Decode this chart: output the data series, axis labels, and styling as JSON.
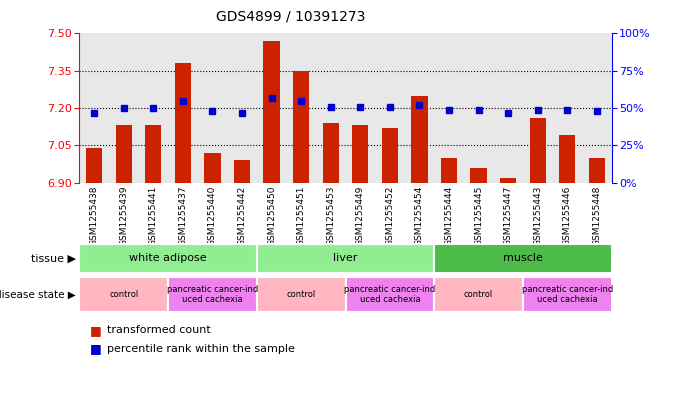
{
  "title": "GDS4899 / 10391273",
  "samples": [
    "GSM1255438",
    "GSM1255439",
    "GSM1255441",
    "GSM1255437",
    "GSM1255440",
    "GSM1255442",
    "GSM1255450",
    "GSM1255451",
    "GSM1255453",
    "GSM1255449",
    "GSM1255452",
    "GSM1255454",
    "GSM1255444",
    "GSM1255445",
    "GSM1255447",
    "GSM1255443",
    "GSM1255446",
    "GSM1255448"
  ],
  "transformed_count": [
    7.04,
    7.13,
    7.13,
    7.38,
    7.02,
    6.99,
    7.47,
    7.35,
    7.14,
    7.13,
    7.12,
    7.25,
    7.0,
    6.96,
    6.92,
    7.16,
    7.09,
    7.0
  ],
  "percentile_rank": [
    47,
    50,
    50,
    55,
    48,
    47,
    57,
    55,
    51,
    51,
    51,
    52,
    49,
    49,
    47,
    49,
    49,
    48
  ],
  "tissue_groups": [
    {
      "label": "white adipose",
      "start": 0,
      "end": 6,
      "color": "#90EE90"
    },
    {
      "label": "liver",
      "start": 6,
      "end": 12,
      "color": "#90EE90"
    },
    {
      "label": "muscle",
      "start": 12,
      "end": 18,
      "color": "#4CBB47"
    }
  ],
  "disease_groups": [
    {
      "label": "control",
      "start": 0,
      "end": 3,
      "color": "#FFB6C1"
    },
    {
      "label": "pancreatic cancer-ind\nuced cachexia",
      "start": 3,
      "end": 6,
      "color": "#EE82EE"
    },
    {
      "label": "control",
      "start": 6,
      "end": 9,
      "color": "#FFB6C1"
    },
    {
      "label": "pancreatic cancer-ind\nuced cachexia",
      "start": 9,
      "end": 12,
      "color": "#EE82EE"
    },
    {
      "label": "control",
      "start": 12,
      "end": 15,
      "color": "#FFB6C1"
    },
    {
      "label": "pancreatic cancer-ind\nuced cachexia",
      "start": 15,
      "end": 18,
      "color": "#EE82EE"
    }
  ],
  "ylim_left": [
    6.9,
    7.5
  ],
  "ylim_right": [
    0,
    100
  ],
  "yticks_left": [
    6.9,
    7.05,
    7.2,
    7.35,
    7.5
  ],
  "yticks_right": [
    0,
    25,
    50,
    75,
    100
  ],
  "bar_color": "#CC2200",
  "dot_color": "#0000CC",
  "bar_width": 0.55,
  "bg_color": "#E8E8E8"
}
